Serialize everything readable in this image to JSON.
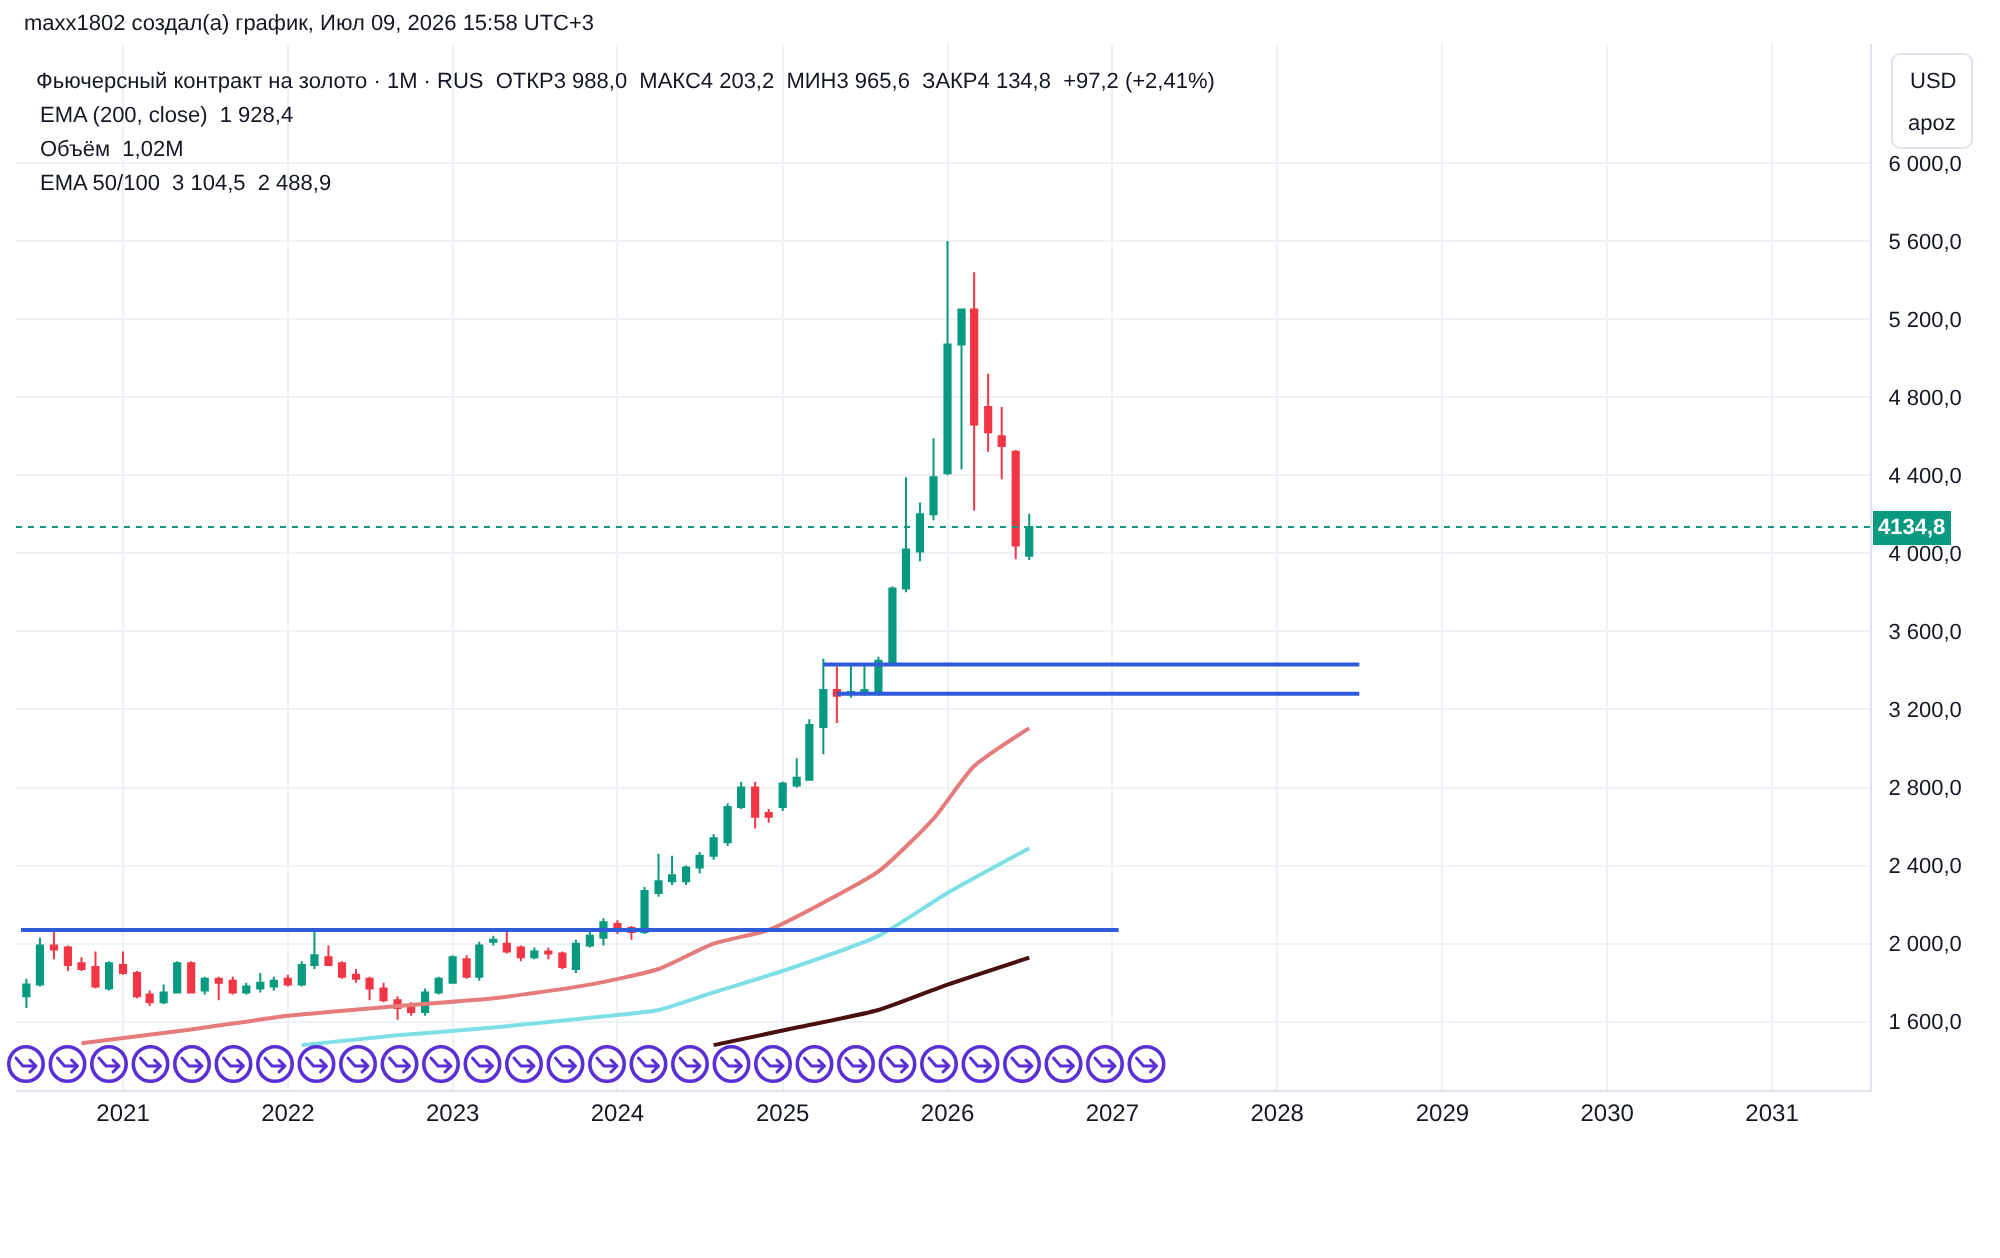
{
  "chart_data": {
    "type": "candlestick",
    "title": "Фьючерсный контракт на золото · 1M · RUS  ОТКР3 988,0  МАКС4 203,2  МИН3 965,6  ЗАКР4 134,8  +97,2 (+2,41%)",
    "annotations": [
      "maxx1802 создал(а) график, Июл 09, 2026 15:58 UTC+3",
      "EMA (200, close)  1 928,4",
      "Объём  1,02M",
      "EMA 50/100  3 104,5  2 488,9",
      "USD",
      "apoz"
    ],
    "series": [
      {
        "x": [
          "2020-06",
          "2020-07",
          "2020-08",
          "2020-09",
          "2020-10",
          "2020-11",
          "2020-12",
          "2021-01",
          "2021-02",
          "2021-03",
          "2021-04",
          "2021-05",
          "2021-06",
          "2021-07",
          "2021-08",
          "2021-09",
          "2021-10",
          "2021-11",
          "2021-12",
          "2022-01",
          "2022-02",
          "2022-03",
          "2022-04",
          "2022-05",
          "2022-06",
          "2022-07",
          "2022-08",
          "2022-09",
          "2022-10",
          "2022-11",
          "2022-12",
          "2023-01",
          "2023-02",
          "2023-03",
          "2023-04",
          "2023-05",
          "2023-06",
          "2023-07",
          "2023-08",
          "2023-09",
          "2023-10",
          "2023-11",
          "2023-12",
          "2024-01",
          "2024-02",
          "2024-03",
          "2024-04",
          "2024-05",
          "2024-06",
          "2024-07",
          "2024-08",
          "2024-09",
          "2024-10",
          "2024-11",
          "2024-12",
          "2025-01",
          "2025-02",
          "2025-03",
          "2025-04",
          "2025-05",
          "2025-06",
          "2025-07",
          "2025-08",
          "2025-09",
          "2025-10",
          "2025-11",
          "2025-12",
          "2026-01",
          "2026-02",
          "2026-03",
          "2026-04",
          "2026-05",
          "2026-06",
          "2026-07"
        ],
        "ohlc": [
          [
            1730,
            1820,
            1670,
            1790
          ],
          [
            1790,
            2030,
            1780,
            1990
          ],
          [
            1990,
            2080,
            1920,
            1970
          ],
          [
            1980,
            1990,
            1860,
            1890
          ],
          [
            1900,
            1930,
            1860,
            1870
          ],
          [
            1880,
            1960,
            1770,
            1780
          ],
          [
            1770,
            1910,
            1760,
            1900
          ],
          [
            1890,
            1960,
            1840,
            1850
          ],
          [
            1850,
            1860,
            1720,
            1730
          ],
          [
            1740,
            1760,
            1680,
            1700
          ],
          [
            1700,
            1790,
            1690,
            1750
          ],
          [
            1750,
            1910,
            1750,
            1900
          ],
          [
            1900,
            1910,
            1750,
            1750
          ],
          [
            1760,
            1830,
            1740,
            1820
          ],
          [
            1820,
            1830,
            1710,
            1800
          ],
          [
            1810,
            1830,
            1740,
            1750
          ],
          [
            1750,
            1800,
            1740,
            1780
          ],
          [
            1770,
            1850,
            1750,
            1800
          ],
          [
            1780,
            1830,
            1760,
            1810
          ],
          [
            1820,
            1840,
            1780,
            1790
          ],
          [
            1790,
            1910,
            1780,
            1890
          ],
          [
            1890,
            2060,
            1870,
            1940
          ],
          [
            1930,
            1990,
            1890,
            1890
          ],
          [
            1900,
            1910,
            1820,
            1830
          ],
          [
            1840,
            1870,
            1800,
            1820
          ],
          [
            1820,
            1830,
            1710,
            1770
          ],
          [
            1770,
            1800,
            1700,
            1710
          ],
          [
            1710,
            1730,
            1610,
            1670
          ],
          [
            1680,
            1700,
            1630,
            1650
          ],
          [
            1650,
            1770,
            1630,
            1750
          ],
          [
            1750,
            1830,
            1740,
            1820
          ],
          [
            1800,
            1940,
            1800,
            1930
          ],
          [
            1920,
            1940,
            1820,
            1830
          ],
          [
            1830,
            2010,
            1810,
            1990
          ],
          [
            2010,
            2040,
            1990,
            2020
          ],
          [
            2000,
            2080,
            1950,
            1960
          ],
          [
            1980,
            1990,
            1910,
            1930
          ],
          [
            1930,
            1980,
            1920,
            1960
          ],
          [
            1960,
            1980,
            1920,
            1950
          ],
          [
            1950,
            1960,
            1870,
            1880
          ],
          [
            1870,
            2020,
            1850,
            2000
          ],
          [
            1990,
            2060,
            1980,
            2040
          ],
          [
            2030,
            2130,
            1990,
            2110
          ],
          [
            2100,
            2120,
            2050,
            2070
          ],
          [
            2080,
            2090,
            2020,
            2060
          ],
          [
            2060,
            2290,
            2050,
            2270
          ],
          [
            2260,
            2460,
            2240,
            2320
          ],
          [
            2320,
            2450,
            2300,
            2350
          ],
          [
            2320,
            2400,
            2300,
            2390
          ],
          [
            2390,
            2470,
            2360,
            2450
          ],
          [
            2450,
            2560,
            2430,
            2540
          ],
          [
            2520,
            2720,
            2500,
            2700
          ],
          [
            2700,
            2830,
            2690,
            2800
          ],
          [
            2800,
            2830,
            2590,
            2650
          ],
          [
            2670,
            2690,
            2620,
            2650
          ],
          [
            2700,
            2830,
            2680,
            2820
          ],
          [
            2810,
            2950,
            2800,
            2850
          ],
          [
            2840,
            3150,
            2840,
            3120
          ],
          [
            3110,
            3460,
            2970,
            3300
          ],
          [
            3300,
            3420,
            3130,
            3270
          ],
          [
            3280,
            3430,
            3260,
            3290
          ],
          [
            3290,
            3430,
            3270,
            3300
          ],
          [
            3280,
            3470,
            3270,
            3450
          ],
          [
            3440,
            3830,
            3440,
            3820
          ],
          [
            3820,
            4390,
            3800,
            4020
          ],
          [
            4010,
            4260,
            3960,
            4200
          ],
          [
            4200,
            4590,
            4170,
            4390
          ],
          [
            4410,
            5600,
            4400,
            5070
          ],
          [
            5070,
            5250,
            4430,
            5250
          ],
          [
            5250,
            5440,
            4220,
            4660
          ],
          [
            4750,
            4920,
            4520,
            4620
          ],
          [
            4600,
            4750,
            4380,
            4550
          ],
          [
            4520,
            4530,
            3970,
            4040
          ],
          [
            3988.0,
            4203.2,
            3965.6,
            4134.8
          ]
        ],
        "colors": [
          "#089981",
          "#089981",
          "#f23645",
          "#f23645",
          "#f23645",
          "#f23645",
          "#089981",
          "#f23645",
          "#f23645",
          "#f23645",
          "#089981",
          "#089981",
          "#f23645",
          "#089981",
          "#f23645",
          "#f23645",
          "#089981",
          "#089981",
          "#089981",
          "#f23645",
          "#089981",
          "#089981",
          "#f23645",
          "#f23645",
          "#f23645",
          "#f23645",
          "#f23645",
          "#f23645",
          "#f23645",
          "#089981",
          "#089981",
          "#089981",
          "#f23645",
          "#089981",
          "#089981",
          "#f23645",
          "#f23645",
          "#089981",
          "#f23645",
          "#f23645",
          "#089981",
          "#089981",
          "#089981",
          "#f23645",
          "#f23645",
          "#089981",
          "#089981",
          "#089981",
          "#089981",
          "#089981",
          "#089981",
          "#089981",
          "#089981",
          "#f23645",
          "#f23645",
          "#089981",
          "#089981",
          "#089981",
          "#089981",
          "#f23645",
          "#089981",
          "#089981",
          "#089981",
          "#089981",
          "#089981",
          "#089981",
          "#089981",
          "#089981",
          "#089981",
          "#f23645",
          "#f23645",
          "#f23645",
          "#f23645",
          "#089981"
        ]
      },
      {
        "type": "line",
        "color": "#e57b7b",
        "x": [
          "2020-10",
          "2021-06",
          "2022-01",
          "2022-09",
          "2023-04",
          "2023-11",
          "2024-04",
          "2024-08",
          "2024-12",
          "2025-04",
          "2025-08",
          "2025-12",
          "2026-03",
          "2026-07"
        ],
        "values": [
          1490,
          1560,
          1630,
          1680,
          1720,
          1790,
          1870,
          2000,
          2070,
          2210,
          2370,
          2640,
          2910,
          3104.5
        ]
      },
      {
        "type": "line",
        "color": "#7fdfe6",
        "x": [
          "2022-02",
          "2022-09",
          "2023-04",
          "2023-11",
          "2024-04",
          "2024-08",
          "2025-01",
          "2025-08",
          "2026-01",
          "2026-07"
        ],
        "values": [
          1480,
          1530,
          1570,
          1620,
          1660,
          1750,
          1860,
          2040,
          2260,
          2488.9
        ]
      },
      {
        "type": "line",
        "color": "#4a1010",
        "x": [
          "2024-08",
          "2025-02",
          "2025-08",
          "2026-01",
          "2026-07"
        ],
        "values": [
          1480,
          1570,
          1660,
          1790,
          1928.4
        ]
      },
      {
        "type": "line",
        "color": "#2f5ad8",
        "x": [
          "2020-05-20",
          "2027-01-15"
        ],
        "values": [
          2070,
          2070
        ]
      },
      {
        "type": "line",
        "color": "#2f5ad8",
        "x": [
          "2025-04",
          "2028-07"
        ],
        "values": [
          3430,
          3430
        ]
      },
      {
        "type": "line",
        "color": "#2f5ad8",
        "x": [
          "2025-05",
          "2028-07"
        ],
        "values": [
          3280,
          3280
        ]
      }
    ],
    "xlim": [
      "2020-05-09",
      "2031-08-06"
    ],
    "xticks": [
      "2021",
      "2022",
      "2023",
      "2024",
      "2025",
      "2026",
      "2027",
      "2028",
      "2029",
      "2030",
      "2031"
    ],
    "ylim": [
      1250,
      6610
    ],
    "yticks": [
      {
        "value": 1600,
        "label": "1 600,0"
      },
      {
        "value": 2000,
        "label": "2 000,0"
      },
      {
        "value": 2400,
        "label": "2 400,0"
      },
      {
        "value": 2800,
        "label": "2 800,0"
      },
      {
        "value": 3200,
        "label": "3 200,0"
      },
      {
        "value": 3600,
        "label": "3 600,0"
      },
      {
        "value": 4000,
        "label": "4 000,0"
      },
      {
        "value": 4400,
        "label": "4 400,0"
      },
      {
        "value": 4800,
        "label": "4 800,0"
      },
      {
        "value": 5200,
        "label": "5 200,0"
      },
      {
        "value": 5600,
        "label": "5 600,0"
      },
      {
        "value": 6000,
        "label": "6 000,0"
      }
    ],
    "ref_lines": [
      {
        "axis": "y",
        "value": 4134.8,
        "label": "4134,8",
        "color": "#089981",
        "line_style": "dotted"
      }
    ],
    "grid": true
  }
}
